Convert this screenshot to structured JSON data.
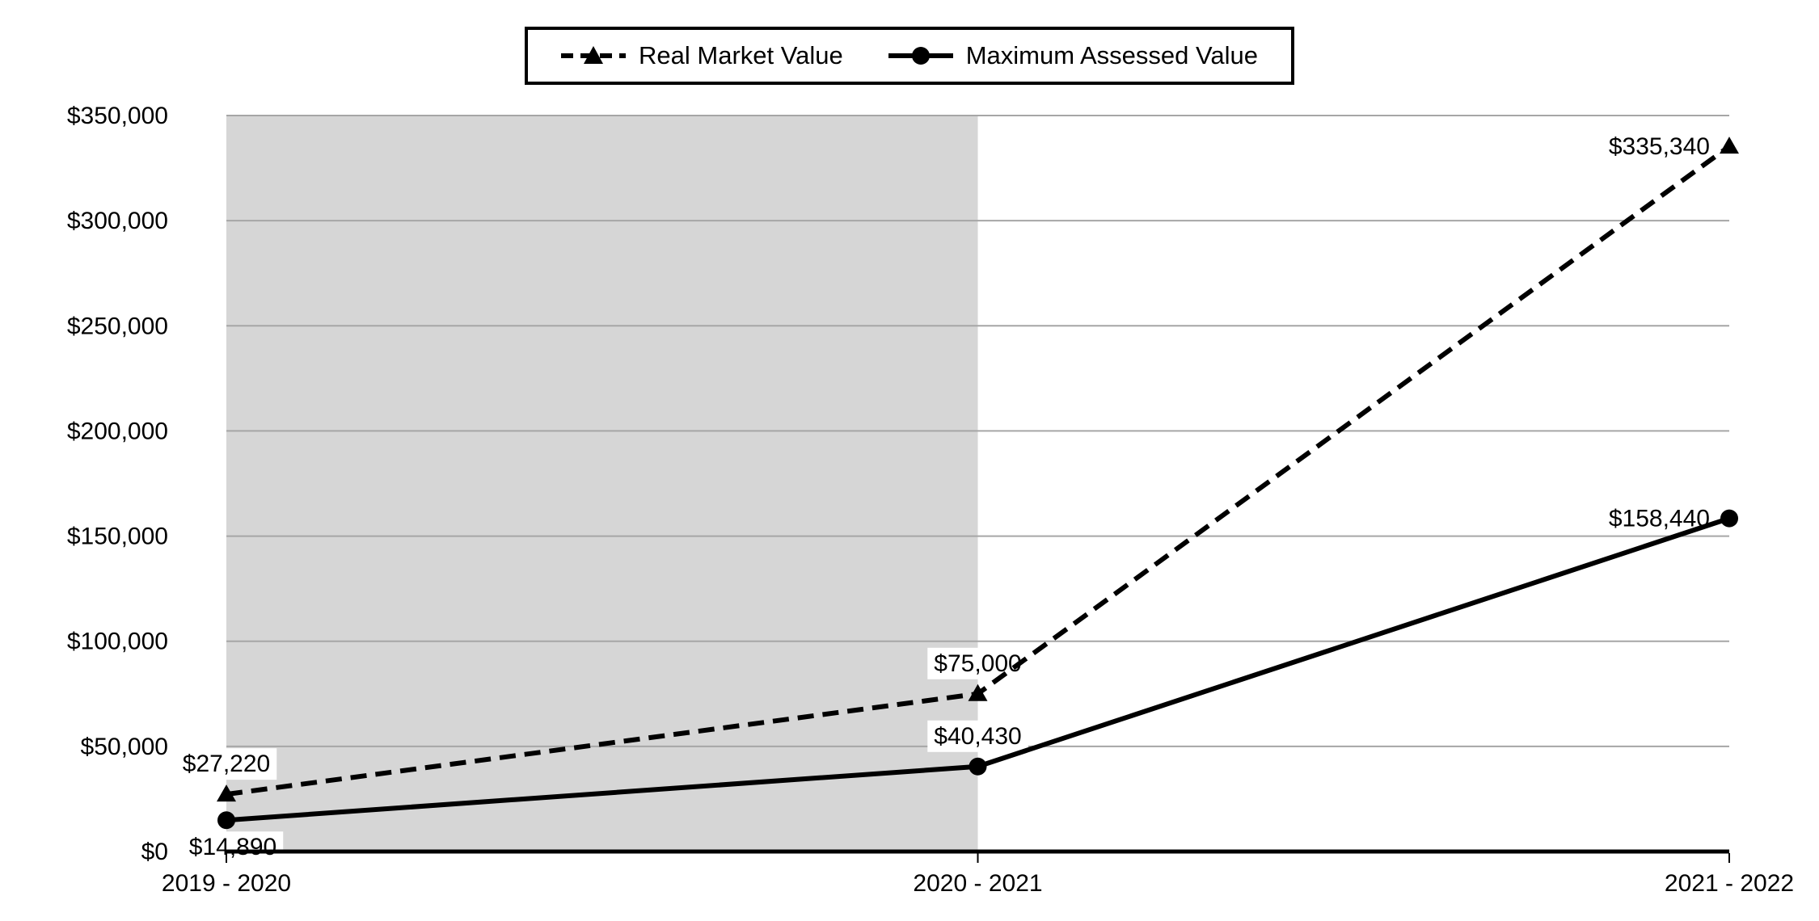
{
  "chart_data": {
    "type": "line",
    "categories": [
      "2019 - 2020",
      "2020 - 2021",
      "2021 - 2022"
    ],
    "series": [
      {
        "name": "Real Market Value",
        "values": [
          27220,
          75000,
          335340
        ],
        "labels": [
          "$27,220",
          "$75,000",
          "$335,340"
        ],
        "line_style": "dashed",
        "marker": "triangle",
        "color": "#000000",
        "label_placements": [
          "above",
          "above",
          "left"
        ]
      },
      {
        "name": "Maximum Assessed Value",
        "values": [
          14890,
          40430,
          158440
        ],
        "labels": [
          "$14,890",
          "$40,430",
          "$158,440"
        ],
        "line_style": "solid",
        "marker": "circle",
        "color": "#000000",
        "label_placements": [
          "below",
          "above",
          "left"
        ]
      }
    ],
    "y_axis": {
      "tick_labels": [
        "$350,000",
        "$300,000",
        "$250,000",
        "$200,000",
        "$150,000",
        "$100,000",
        "$50,000",
        "$0"
      ],
      "tick_values": [
        350000,
        300000,
        250000,
        200000,
        150000,
        100000,
        50000,
        0
      ],
      "min": 0,
      "max": 350000,
      "step": 50000
    },
    "shaded_region": {
      "from_category": 0,
      "to_category": 1,
      "color": "#d6d6d6"
    },
    "colors": {
      "series": "#000000",
      "gridline": "#a6a6a6",
      "axis": "#000000",
      "background": "#ffffff",
      "label_background": "#ffffff"
    },
    "grid": true,
    "legend_position": "top"
  }
}
